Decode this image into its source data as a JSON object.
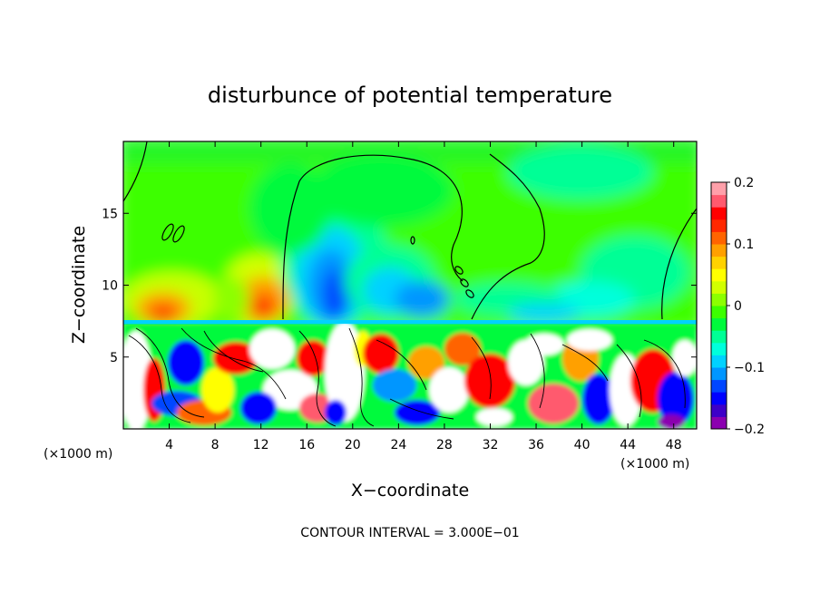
{
  "chart_data": {
    "type": "heatmap",
    "title": "disturbunce of potential temperature",
    "xlabel": "X−coordinate",
    "ylabel": "Z−coordinate",
    "x_unit_left": "(×1000 m)",
    "x_unit_right": "(×1000 m)",
    "xlim": [
      0,
      50
    ],
    "ylim": [
      0,
      20
    ],
    "x_ticks": [
      4,
      8,
      12,
      16,
      20,
      24,
      28,
      32,
      36,
      40,
      44,
      48
    ],
    "y_ticks": [
      5,
      10,
      15
    ],
    "colorbar": {
      "range": [
        -0.2,
        0.2
      ],
      "tick_values": [
        0.2,
        0.1,
        0,
        -0.1,
        -0.2
      ],
      "tick_labels": [
        "0.2",
        "0.1",
        "0",
        "−0.1",
        "−0.2"
      ],
      "colors": [
        "#8b00b0",
        "#3d00c8",
        "#0000ff",
        "#0046ff",
        "#0096ff",
        "#00d2ff",
        "#00ffdc",
        "#00ff96",
        "#00fa3c",
        "#3cff00",
        "#8cff00",
        "#d2ff00",
        "#ffff00",
        "#ffd200",
        "#ffa000",
        "#ff6400",
        "#ff2800",
        "#ff0000",
        "#ff5a6e",
        "#ffa0aa"
      ]
    },
    "grid": false,
    "contour_interval_text": "CONTOUR INTERVAL = 3.000E−01"
  }
}
